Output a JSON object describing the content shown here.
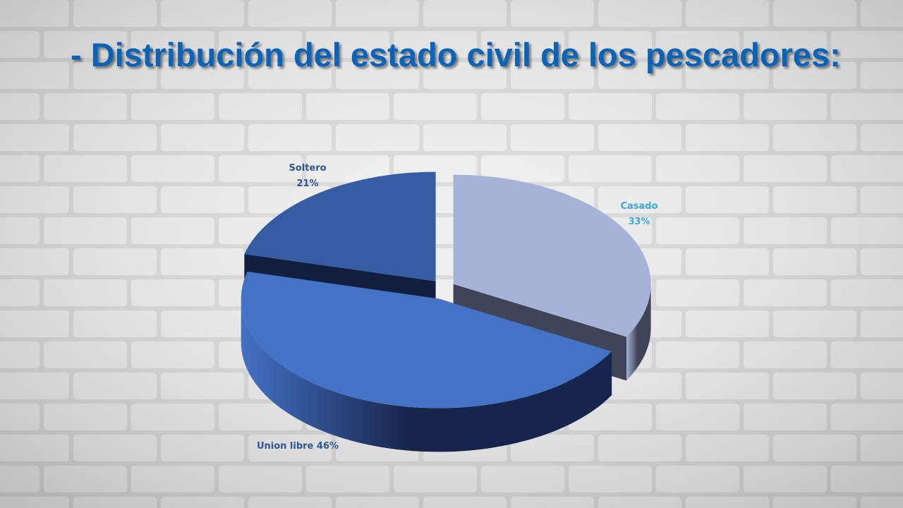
{
  "slide": {
    "title": "- Distribución del estado civil de los pescadores:",
    "title_color": "#0B63B8",
    "background_color": "#DCDCDC",
    "brick_color": "#EFEFEF"
  },
  "chart_data": {
    "type": "pie",
    "style": "3d-exploded",
    "title": "",
    "slices": [
      {
        "label": "Casado",
        "value_text": "33%",
        "value": 33,
        "top_color": "#A5B3D8",
        "side_color": "#3F4456",
        "label_color": "#3AA8DF"
      },
      {
        "label": "Union libre",
        "value_text": "46%",
        "value": 46,
        "top_color": "#4472C4",
        "side_color": "#16254B",
        "label_color": "#2F5597"
      },
      {
        "label": "Soltero",
        "value_text": "21%",
        "value": 21,
        "top_color": "#365DA4",
        "side_color": "#121E3D",
        "label_color": "#2F5597"
      }
    ]
  }
}
